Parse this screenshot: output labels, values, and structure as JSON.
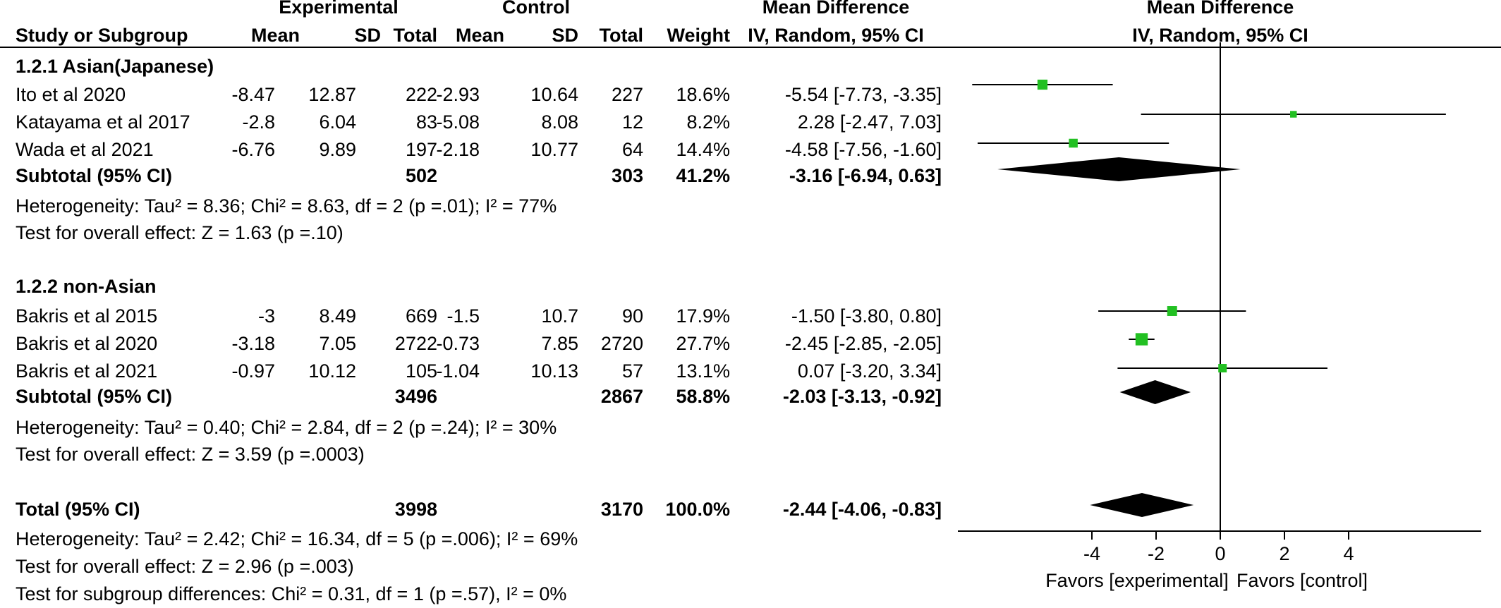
{
  "header": {
    "experimental": "Experimental",
    "control": "Control",
    "md_col": "Mean Difference",
    "md_plot": "Mean Difference",
    "study_or_subgroup": "Study or Subgroup",
    "mean_e": "Mean",
    "sd_e": "SD",
    "total_e": "Total",
    "mean_c": "Mean",
    "sd_c": "SD",
    "total_c": "Total",
    "weight": "Weight",
    "method_col": "IV, Random, 95% CI",
    "method_plot": "IV, Random, 95% CI"
  },
  "groups": [
    {
      "title": "1.2.1 Asian(Japanese)",
      "studies": [
        {
          "name": "Ito et al  2020",
          "mean_e": "-8.47",
          "sd_e": "12.87",
          "total_e": "222",
          "mean_c": "-2.93",
          "sd_c": "10.64",
          "total_c": "227",
          "weight": "18.6%",
          "ci": "-5.54 [-7.73, -3.35]"
        },
        {
          "name": "Katayama et al  2017",
          "mean_e": "-2.8",
          "sd_e": "6.04",
          "total_e": "83",
          "mean_c": "-5.08",
          "sd_c": "8.08",
          "total_c": "12",
          "weight": "8.2%",
          "ci": "2.28 [-2.47, 7.03]"
        },
        {
          "name": "Wada et al  2021",
          "mean_e": "-6.76",
          "sd_e": "9.89",
          "total_e": "197",
          "mean_c": "-2.18",
          "sd_c": "10.77",
          "total_c": "64",
          "weight": "14.4%",
          "ci": "-4.58 [-7.56, -1.60]"
        }
      ],
      "subtotal": {
        "label": "Subtotal (95% CI)",
        "total_e": "502",
        "total_c": "303",
        "weight": "41.2%",
        "ci": "-3.16 [-6.94, 0.63]"
      },
      "heterogeneity": "Heterogeneity: Tau² = 8.36; Chi² = 8.63, df = 2 (p =.01); I² = 77%",
      "overall": "Test for overall effect: Z = 1.63 (p =.10)"
    },
    {
      "title": "1.2.2 non-Asian",
      "studies": [
        {
          "name": "Bakris et al  2015",
          "mean_e": "-3",
          "sd_e": "8.49",
          "total_e": "669",
          "mean_c": "-1.5",
          "sd_c": "10.7",
          "total_c": "90",
          "weight": "17.9%",
          "ci": "-1.50 [-3.80, 0.80]"
        },
        {
          "name": "Bakris et al  2020",
          "mean_e": "-3.18",
          "sd_e": "7.05",
          "total_e": "2722",
          "mean_c": "-0.73",
          "sd_c": "7.85",
          "total_c": "2720",
          "weight": "27.7%",
          "ci": "-2.45 [-2.85, -2.05]"
        },
        {
          "name": "Bakris et al  2021",
          "mean_e": "-0.97",
          "sd_e": "10.12",
          "total_e": "105",
          "mean_c": "-1.04",
          "sd_c": "10.13",
          "total_c": "57",
          "weight": "13.1%",
          "ci": "0.07 [-3.20, 3.34]"
        }
      ],
      "subtotal": {
        "label": "Subtotal (95% CI)",
        "total_e": "3496",
        "total_c": "2867",
        "weight": "58.8%",
        "ci": "-2.03 [-3.13, -0.92]"
      },
      "heterogeneity": "Heterogeneity: Tau² = 0.40; Chi² = 2.84, df = 2 (p =.24); I² = 30%",
      "overall": "Test for overall effect: Z = 3.59 (p =.0003)"
    }
  ],
  "total": {
    "label": "Total (95% CI)",
    "total_e": "3998",
    "total_c": "3170",
    "weight": "100.0%",
    "ci": "-2.44 [-4.06, -0.83]",
    "heterogeneity": "Heterogeneity: Tau² = 2.42; Chi² = 16.34, df = 5 (p =.006); I² = 69%",
    "overall": "Test for overall effect: Z = 2.96 (p =.003)",
    "subgroup_diff": "Test for subgroup differences: Chi² = 0.31, df = 1 (p =.57), I² = 0%"
  },
  "colors": {
    "marker": "#22c022",
    "diamond": "#000000",
    "line": "#000000"
  },
  "chart_data": {
    "type": "forest",
    "xlabel_left": "Favors [experimental]",
    "xlabel_right": "Favors [control]",
    "xticks": [
      -4,
      -2,
      0,
      2,
      4
    ],
    "xlim": [
      -8,
      8
    ],
    "studies": [
      {
        "name": "Ito et al  2020",
        "md": -5.54,
        "lo": -7.73,
        "hi": -3.35,
        "weight": 18.6
      },
      {
        "name": "Katayama et al  2017",
        "md": 2.28,
        "lo": -2.47,
        "hi": 7.03,
        "weight": 8.2
      },
      {
        "name": "Wada et al  2021",
        "md": -4.58,
        "lo": -7.56,
        "hi": -1.6,
        "weight": 14.4
      },
      {
        "name": "Bakris et al  2015",
        "md": -1.5,
        "lo": -3.8,
        "hi": 0.8,
        "weight": 17.9
      },
      {
        "name": "Bakris et al  2020",
        "md": -2.45,
        "lo": -2.85,
        "hi": -2.05,
        "weight": 27.7
      },
      {
        "name": "Bakris et al  2021",
        "md": 0.07,
        "lo": -3.2,
        "hi": 3.34,
        "weight": 13.1
      }
    ],
    "summaries": [
      {
        "name": "Subtotal 1.2.1 Asian(Japanese)",
        "md": -3.16,
        "lo": -6.94,
        "hi": 0.63
      },
      {
        "name": "Subtotal 1.2.2 non-Asian",
        "md": -2.03,
        "lo": -3.13,
        "hi": -0.92
      },
      {
        "name": "Total",
        "md": -2.44,
        "lo": -4.06,
        "hi": -0.83
      }
    ]
  }
}
